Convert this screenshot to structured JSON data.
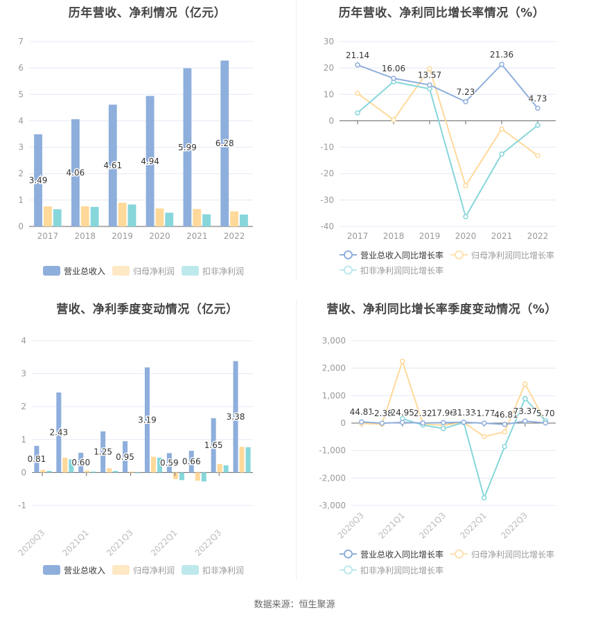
{
  "colors": {
    "revenue": "#8eaedc",
    "net_profit": "#ffd99a",
    "deducted_profit": "#86d6da",
    "grid": "#e3e8f3",
    "axis": "#666666",
    "tick_label": "#999999",
    "data_label": "#333333",
    "title": "#444444"
  },
  "footer": {
    "source": "数据来源：恒生聚源"
  },
  "chart_data": [
    {
      "id": "annual_amount",
      "type": "bar",
      "title": "历年营收、净利情况（亿元）",
      "xlabel": "",
      "ylabel": "",
      "ylim": [
        0,
        7
      ],
      "yticks": [
        "0",
        "1",
        "2",
        "3",
        "4",
        "5",
        "6",
        "7"
      ],
      "grid": true,
      "legend_position": "bottom",
      "categories": [
        "2017",
        "2018",
        "2019",
        "2020",
        "2021",
        "2022"
      ],
      "series": [
        {
          "name": "营业总收入",
          "values": [
            3.49,
            4.06,
            4.61,
            4.94,
            5.99,
            6.28
          ],
          "labels": [
            "3.49",
            "4.06",
            "4.61",
            "4.94",
            "5.99",
            "6.28"
          ]
        },
        {
          "name": "归母净利润",
          "values": [
            0.76,
            0.76,
            0.9,
            0.68,
            0.66,
            0.57
          ]
        },
        {
          "name": "扣非净利润",
          "values": [
            0.65,
            0.74,
            0.83,
            0.52,
            0.46,
            0.45
          ]
        }
      ]
    },
    {
      "id": "annual_growth",
      "type": "line",
      "title": "历年营收、净利同比增长率情况（%）",
      "xlabel": "",
      "ylabel": "",
      "ylim": [
        -40,
        30
      ],
      "yticks": [
        "-40",
        "-30",
        "-20",
        "-10",
        "0",
        "10",
        "20",
        "30"
      ],
      "grid": true,
      "legend_position": "bottom",
      "categories": [
        "2017",
        "2018",
        "2019",
        "2020",
        "2021",
        "2022"
      ],
      "series": [
        {
          "name": "营业总收入同比增长率",
          "values": [
            21.14,
            16.06,
            13.57,
            7.23,
            21.36,
            4.73
          ],
          "labels": [
            "21.14",
            "16.06",
            "13.57",
            "7.23",
            "21.36",
            "4.73"
          ]
        },
        {
          "name": "归母净利润同比增长率",
          "values": [
            10.4,
            0.4,
            19.7,
            -24.6,
            -3.1,
            -13.2
          ]
        },
        {
          "name": "扣非净利润同比增长率",
          "values": [
            3.0,
            14.8,
            12.1,
            -36.3,
            -12.6,
            -1.7
          ]
        }
      ]
    },
    {
      "id": "quarterly_amount",
      "type": "bar",
      "title": "营收、净利季度变动情况（亿元）",
      "xlabel": "",
      "ylabel": "",
      "ylim": [
        -1,
        4
      ],
      "yticks": [
        "-1",
        "0",
        "1",
        "2",
        "3",
        "4"
      ],
      "grid": true,
      "legend_position": "bottom",
      "categories": [
        "2020Q3",
        "2020Q4",
        "2021Q1",
        "2021Q2",
        "2021Q3",
        "2021Q4",
        "2022Q1",
        "2022Q2",
        "2022Q3",
        "2022Q4"
      ],
      "shown_tick_labels": [
        "2020Q3",
        "2021Q1",
        "2021Q3",
        "2022Q1",
        "2022Q3"
      ],
      "series": [
        {
          "name": "营业总收入",
          "values": [
            0.81,
            2.43,
            0.6,
            1.25,
            0.95,
            3.19,
            0.59,
            0.66,
            1.65,
            3.38
          ],
          "labels": [
            "0.81",
            "2.43",
            "0.60",
            "1.25",
            "0.95",
            "3.19",
            "0.59",
            "0.66",
            "1.65",
            "3.38"
          ]
        },
        {
          "name": "归母净利润",
          "values": [
            0.08,
            0.45,
            0.06,
            0.13,
            0.03,
            0.48,
            -0.2,
            -0.25,
            0.26,
            0.78
          ]
        },
        {
          "name": "扣非净利润",
          "values": [
            0.05,
            0.4,
            0.03,
            0.05,
            -0.01,
            0.45,
            -0.23,
            -0.27,
            0.22,
            0.77
          ]
        }
      ]
    },
    {
      "id": "quarterly_growth",
      "type": "line",
      "title": "营收、净利同比增长率季度变动情况（%）",
      "xlabel": "",
      "ylabel": "",
      "ylim": [
        -3000,
        3000
      ],
      "yticks": [
        "-3,000",
        "-2,000",
        "-1,000",
        "0",
        "1,000",
        "2,000",
        "3,000"
      ],
      "grid": true,
      "legend_position": "bottom",
      "categories": [
        "2020Q3",
        "2020Q4",
        "2021Q1",
        "2021Q2",
        "2021Q3",
        "2021Q4",
        "2022Q1",
        "2022Q2",
        "2022Q3",
        "2022Q4"
      ],
      "shown_tick_labels": [
        "2020Q3",
        "2021Q1",
        "2021Q3",
        "2022Q1",
        "2022Q3"
      ],
      "series": [
        {
          "name": "营业总收入同比增长率",
          "values": [
            44.81,
            -2.38,
            24.95,
            2.32,
            17.96,
            31.33,
            -1.77,
            -46.81,
            73.37,
            5.7
          ],
          "labels": [
            "44.81",
            "-2.38",
            "24.95",
            "2.32",
            "17.96",
            "31.33",
            "-1.77",
            "-46.81",
            "73.37",
            "5.70"
          ]
        },
        {
          "name": "归母净利润同比增长率",
          "values": [
            -10,
            -40,
            2250,
            -30,
            -80,
            20,
            -490,
            -320,
            1420,
            60
          ]
        },
        {
          "name": "扣非净利润同比增长率",
          "values": [
            null,
            null,
            160,
            -70,
            -200,
            20,
            -2720,
            -850,
            890,
            80
          ]
        }
      ]
    }
  ]
}
